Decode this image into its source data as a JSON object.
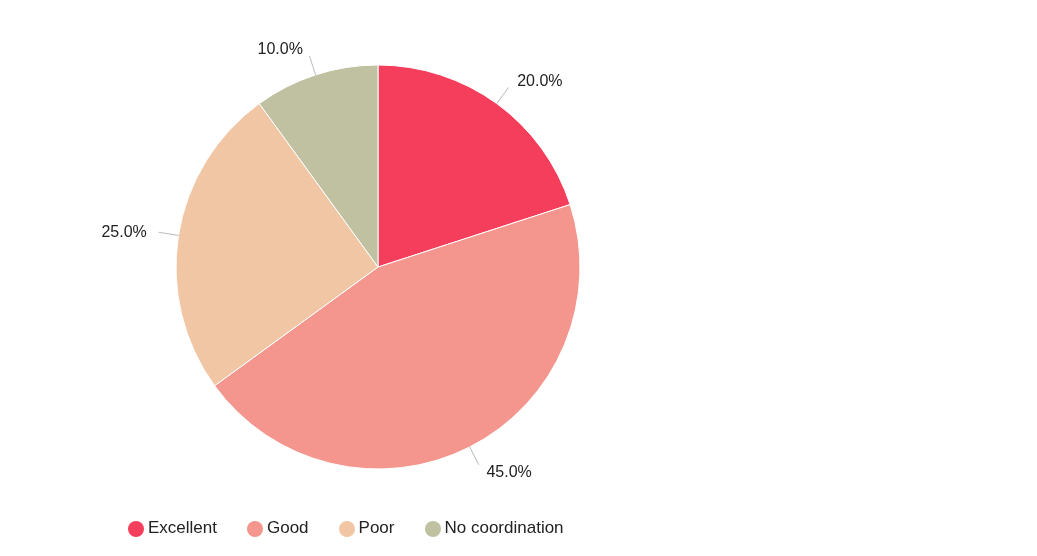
{
  "chart_data": {
    "type": "pie",
    "categories": [
      "Excellent",
      "Good",
      "Poor",
      "No coordination"
    ],
    "values": [
      20,
      45,
      25,
      10
    ],
    "colors": [
      "#f53d5c",
      "#f4968e",
      "#f0c6a5",
      "#bfc1a1"
    ],
    "value_labels": [
      "20.0%",
      "45.0%",
      "25.0%",
      "10.0%"
    ],
    "legend": "bottom left"
  }
}
